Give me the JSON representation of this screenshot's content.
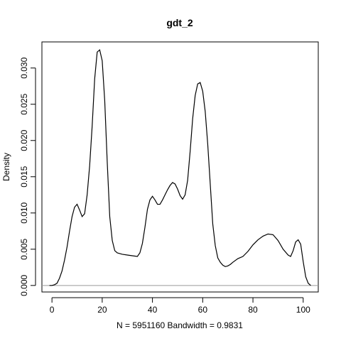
{
  "chart_data": {
    "type": "line",
    "title": "gdt_2",
    "xlabel": "N = 5951160   Bandwidth = 0.9831",
    "ylabel": "Density",
    "xlim": [
      -4,
      106
    ],
    "ylim": [
      -0.0009,
      0.0336
    ],
    "xticks": [
      0,
      20,
      40,
      60,
      80,
      100
    ],
    "yticks": [
      0.0,
      0.005,
      0.01,
      0.015,
      0.02,
      0.025,
      0.03
    ],
    "ytick_labels": [
      "0.000",
      "0.005",
      "0.010",
      "0.015",
      "0.020",
      "0.025",
      "0.030"
    ],
    "baseline": 0,
    "series": [
      {
        "x": [
          -1,
          0,
          1,
          2,
          3,
          4,
          5,
          6,
          7,
          8,
          9,
          10,
          11,
          12,
          13,
          14,
          15,
          16,
          17,
          18,
          19,
          20,
          21,
          22,
          23,
          24,
          25,
          26,
          27,
          28,
          30,
          32,
          34,
          35,
          36,
          37,
          38,
          39,
          40,
          41,
          42,
          43,
          44,
          45,
          46,
          47,
          48,
          49,
          50,
          51,
          52,
          53,
          54,
          55,
          56,
          57,
          58,
          59,
          60,
          61,
          62,
          63,
          64,
          65,
          66,
          67,
          68,
          69,
          70,
          71,
          72,
          74,
          76,
          78,
          80,
          82,
          84,
          86,
          88,
          90,
          92,
          94,
          95,
          96,
          97,
          98,
          99,
          100,
          101,
          102,
          103
        ],
        "y": [
          0.0,
          0.0,
          0.0001,
          0.0003,
          0.001,
          0.002,
          0.0035,
          0.0053,
          0.0075,
          0.0095,
          0.0108,
          0.0112,
          0.0104,
          0.0095,
          0.0099,
          0.0125,
          0.0165,
          0.022,
          0.0285,
          0.0322,
          0.0325,
          0.031,
          0.0255,
          0.017,
          0.0095,
          0.0062,
          0.0048,
          0.0045,
          0.0044,
          0.0043,
          0.0042,
          0.0041,
          0.004,
          0.0045,
          0.0058,
          0.008,
          0.0105,
          0.0118,
          0.0123,
          0.0118,
          0.0112,
          0.0112,
          0.0118,
          0.0125,
          0.0132,
          0.0138,
          0.0142,
          0.014,
          0.0133,
          0.0124,
          0.0119,
          0.0125,
          0.0145,
          0.0185,
          0.023,
          0.0262,
          0.0278,
          0.028,
          0.0268,
          0.024,
          0.0195,
          0.014,
          0.0085,
          0.0055,
          0.0038,
          0.0032,
          0.0028,
          0.0026,
          0.0027,
          0.0029,
          0.0032,
          0.0037,
          0.004,
          0.0047,
          0.0056,
          0.0063,
          0.0068,
          0.0071,
          0.007,
          0.0062,
          0.005,
          0.0042,
          0.004,
          0.0048,
          0.006,
          0.0063,
          0.0057,
          0.0033,
          0.0012,
          0.0003,
          0.0
        ]
      }
    ]
  }
}
